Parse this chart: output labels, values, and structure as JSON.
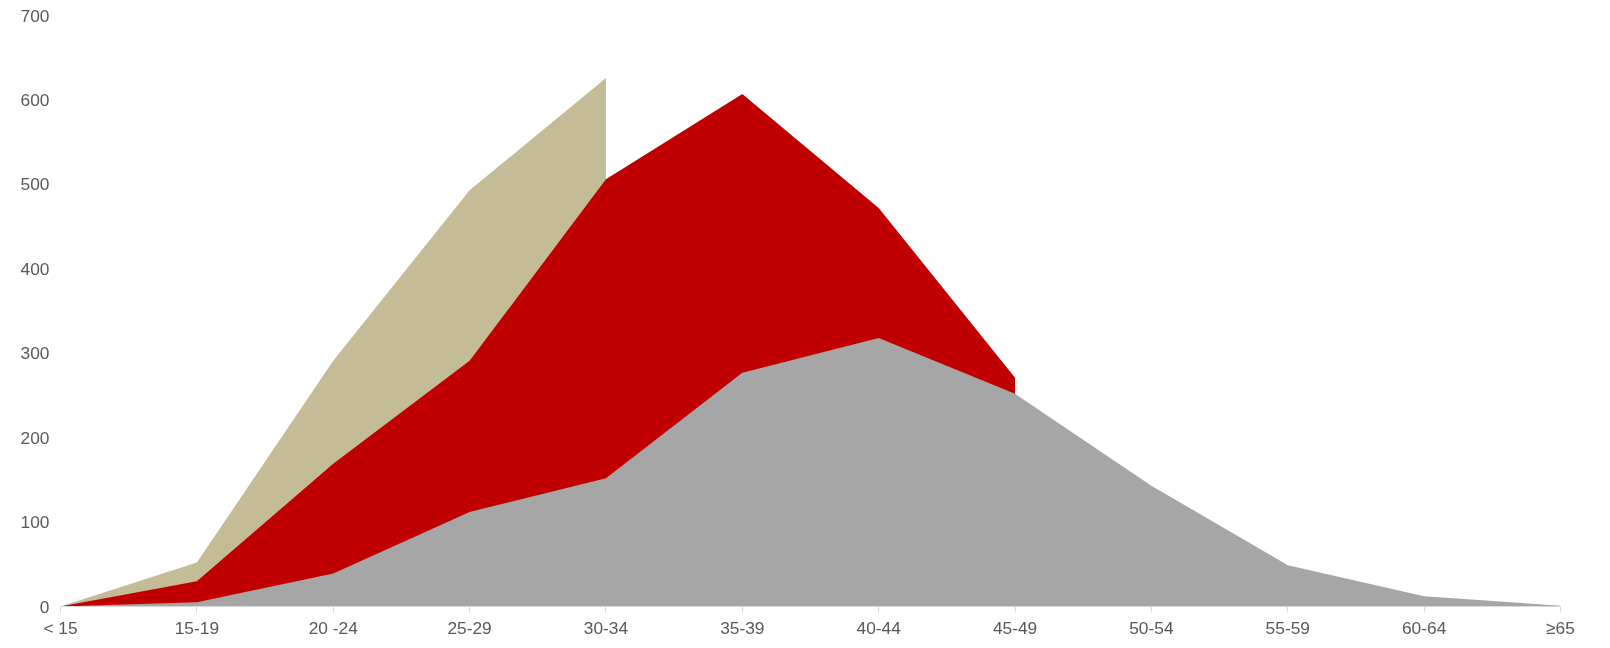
{
  "chart_data": {
    "type": "area",
    "categories": [
      "< 15",
      "15-19",
      "20 -24",
      "25-29",
      "30-34",
      "35-39",
      "40-44",
      "45-49",
      "50-54",
      "55-59",
      "60-64",
      "≥65"
    ],
    "series": [
      {
        "color": "#c4bc96",
        "values": [
          0,
          52,
          291,
          493,
          626,
          null,
          null,
          null,
          null,
          null,
          null,
          null
        ]
      },
      {
        "color": "#c00000",
        "values": [
          0,
          30,
          169,
          291,
          506,
          607,
          472,
          271,
          null,
          null,
          null,
          null
        ]
      },
      {
        "color": "#a6a6a6",
        "values": [
          0,
          5,
          39,
          112,
          152,
          277,
          318,
          252,
          143,
          49,
          12,
          1
        ]
      }
    ],
    "ylim": [
      0,
      700
    ],
    "yticks": [
      0,
      100,
      200,
      300,
      400,
      500,
      600,
      700
    ],
    "grid": false
  }
}
